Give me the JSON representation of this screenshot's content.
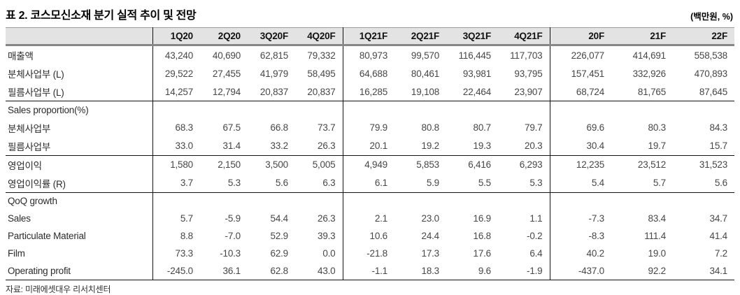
{
  "title": "표 2. 코스모신소재 분기 실적 추이 및 전망",
  "unit_label": "(백만원, %)",
  "source": "자료: 미래에셋대우 리서치센터",
  "table": {
    "columns": [
      "",
      "1Q20",
      "2Q20",
      "3Q20F",
      "4Q20F",
      "1Q21F",
      "2Q21F",
      "3Q21F",
      "4Q21F",
      "20F",
      "21F",
      "22F"
    ],
    "groups": [
      {
        "rows": [
          {
            "label": "매출액",
            "values": [
              "43,240",
              "40,690",
              "62,815",
              "79,332",
              "80,973",
              "99,570",
              "116,445",
              "117,703",
              "226,077",
              "414,691",
              "558,538"
            ]
          },
          {
            "label": "분체사업부 (L)",
            "values": [
              "29,522",
              "27,455",
              "41,979",
              "58,495",
              "64,688",
              "80,461",
              "93,981",
              "93,795",
              "157,451",
              "332,926",
              "470,893"
            ]
          },
          {
            "label": "필름사업부 (L)",
            "values": [
              "14,257",
              "12,794",
              "20,837",
              "20,837",
              "16,285",
              "19,108",
              "22,464",
              "23,907",
              "68,724",
              "81,765",
              "87,645"
            ]
          }
        ]
      },
      {
        "rows": [
          {
            "label": "Sales proportion(%)",
            "values": [
              "",
              "",
              "",
              "",
              "",
              "",
              "",
              "",
              "",
              "",
              ""
            ]
          },
          {
            "label": "분체사업부",
            "values": [
              "68.3",
              "67.5",
              "66.8",
              "73.7",
              "79.9",
              "80.8",
              "80.7",
              "79.7",
              "69.6",
              "80.3",
              "84.3"
            ]
          },
          {
            "label": "필름사업부",
            "values": [
              "33.0",
              "31.4",
              "33.2",
              "26.3",
              "20.1",
              "19.2",
              "19.3",
              "20.3",
              "30.4",
              "19.7",
              "15.7"
            ]
          }
        ]
      },
      {
        "rows": [
          {
            "label": "영업이익",
            "values": [
              "1,580",
              "2,150",
              "3,500",
              "5,005",
              "4,949",
              "5,853",
              "6,416",
              "6,293",
              "12,235",
              "23,512",
              "31,523"
            ]
          },
          {
            "label": "영업이익률 (R)",
            "values": [
              "3.7",
              "5.3",
              "5.6",
              "6.3",
              "6.1",
              "5.9",
              "5.5",
              "5.3",
              "5.4",
              "5.7",
              "5.6"
            ]
          }
        ]
      },
      {
        "rows": [
          {
            "label": "QoQ growth",
            "values": [
              "",
              "",
              "",
              "",
              "",
              "",
              "",
              "",
              "",
              "",
              ""
            ]
          },
          {
            "label": "Sales",
            "values": [
              "5.7",
              "-5.9",
              "54.4",
              "26.3",
              "2.1",
              "23.0",
              "16.9",
              "1.1",
              "-7.3",
              "83.4",
              "34.7"
            ]
          },
          {
            "label": "Particulate Material",
            "values": [
              "8.8",
              "-7.0",
              "52.9",
              "39.3",
              "10.6",
              "24.4",
              "16.8",
              "-0.2",
              "-8.3",
              "111.4",
              "41.4"
            ]
          },
          {
            "label": "Film",
            "values": [
              "73.3",
              "-10.3",
              "62.9",
              "0.0",
              "-21.8",
              "17.3",
              "17.6",
              "6.4",
              "40.2",
              "19.0",
              "7.2"
            ]
          },
          {
            "label": "Operating profit",
            "values": [
              "-245.0",
              "36.1",
              "62.8",
              "43.0",
              "-1.1",
              "18.3",
              "9.6",
              "-1.9",
              "-437.0",
              "92.2",
              "34.1"
            ]
          }
        ]
      }
    ]
  }
}
